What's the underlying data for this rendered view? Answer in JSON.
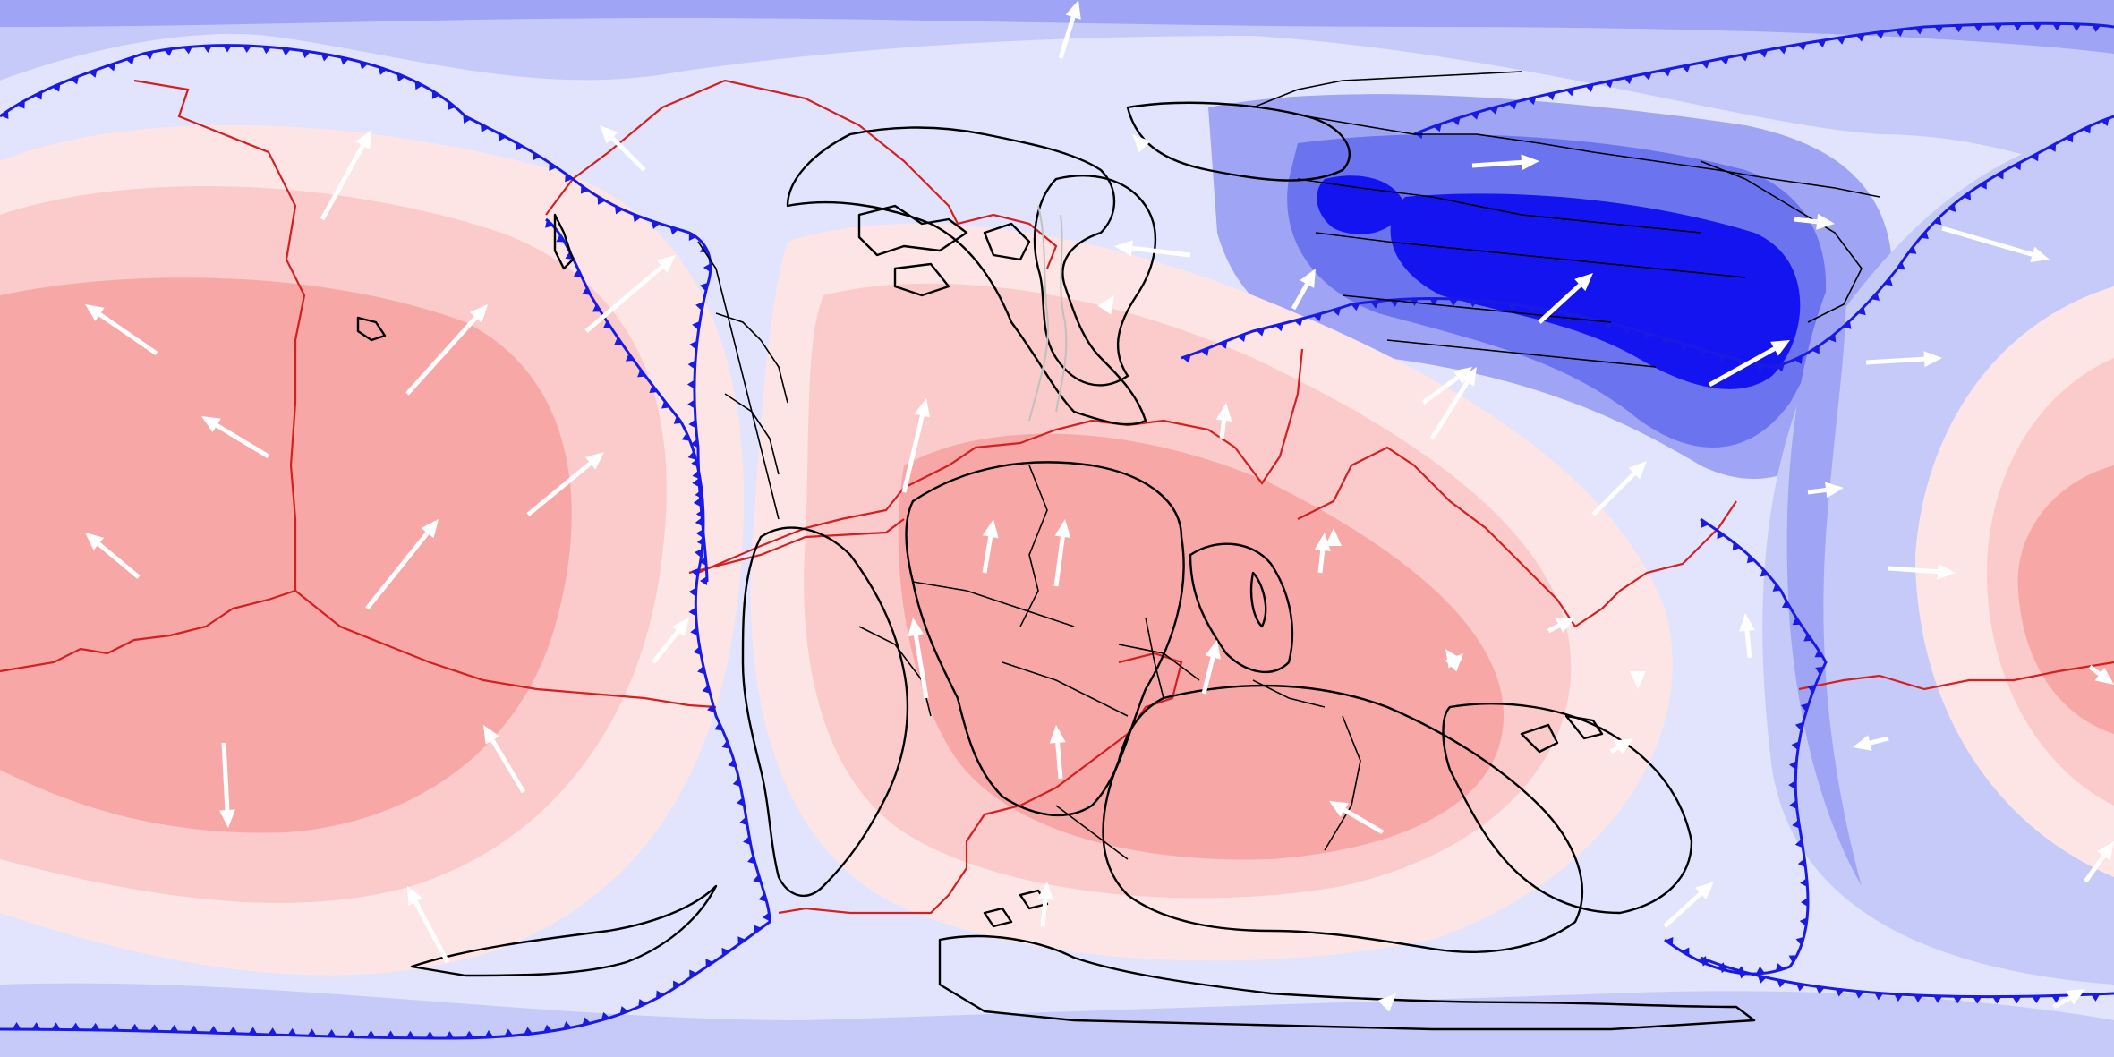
{
  "map": {
    "projection": "equirectangular",
    "colors": {
      "red_1": "#fde5e5",
      "red_2": "#fbcaca",
      "red_3": "#f8a7a7",
      "red_4": "#f38a8a",
      "blue_1": "#e2e4fd",
      "blue_2": "#c6caf9",
      "blue_3": "#9fa5f4",
      "blue_4": "#6c73ee",
      "blue_5": "#1414f0",
      "ridge": "#d42020",
      "trench": "#1a1ae6",
      "rift": "#c0c0c0",
      "coastline": "#000000",
      "velocity_arrow": "#ffffff"
    },
    "layers": [
      "dynamic-topography-field",
      "plate-boundaries-ridge",
      "plate-boundaries-subduction",
      "rift-lines",
      "paleo-coastlines",
      "plate-velocity-arrows"
    ],
    "arrow_count": 52
  }
}
